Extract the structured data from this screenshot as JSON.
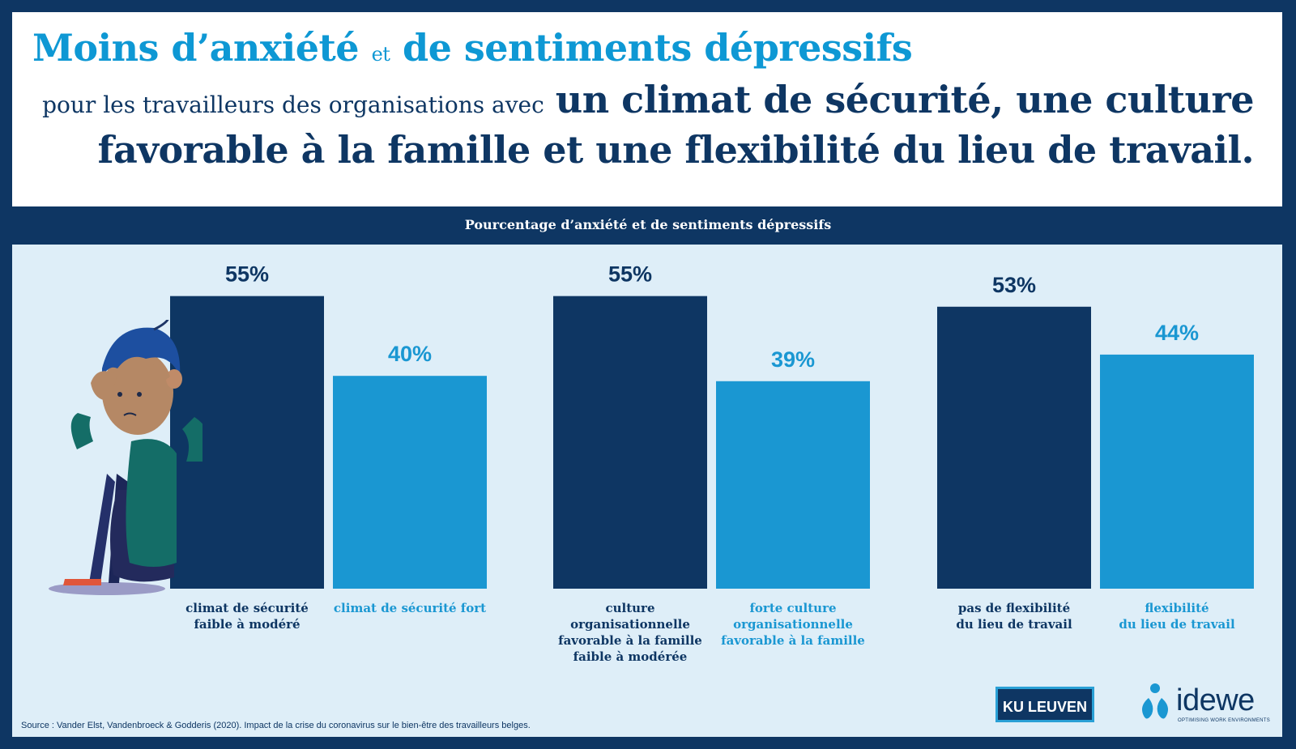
{
  "header": {
    "line1_part1": "Moins d’anxiété",
    "line1_connector": "et",
    "line1_part2": "de sentiments dépressifs",
    "line2_intro": "pour les travailleurs des organisations avec",
    "line2_bold": "un climat de sécurité, une culture",
    "line3": "favorable à la famille et une flexibilité du lieu de travail."
  },
  "colors": {
    "dark": "#0e3663",
    "light": "#1a97d2",
    "panel": "#deeef8"
  },
  "chart_data": {
    "type": "bar",
    "title": "Pourcentage d’anxiété et de sentiments dépressifs",
    "ylim": [
      0,
      70
    ],
    "groups": [
      {
        "bars": [
          {
            "label": "climat de sécurité faible à modéré",
            "label_lines": [
              "climat de sécurité",
              "faible à modéré"
            ],
            "value": 55,
            "value_label": "55%",
            "tone": "dark"
          },
          {
            "label": "climat de sécurité fort",
            "label_lines": [
              "climat de sécurité fort"
            ],
            "value": 40,
            "value_label": "40%",
            "tone": "light"
          }
        ]
      },
      {
        "bars": [
          {
            "label": "culture organisationnelle favorable à la famille faible à modérée",
            "label_lines": [
              "culture",
              "organisationnelle",
              "favorable à la famille",
              "faible à modérée"
            ],
            "value": 55,
            "value_label": "55%",
            "tone": "dark"
          },
          {
            "label": "forte culture organisationnelle favorable à la famille",
            "label_lines": [
              "forte culture",
              "organisationnelle",
              "favorable à la famille"
            ],
            "value": 39,
            "value_label": "39%",
            "tone": "light"
          }
        ]
      },
      {
        "bars": [
          {
            "label": "pas de flexibilité du lieu de travail",
            "label_lines": [
              "pas de flexibilité",
              "du lieu de travail"
            ],
            "value": 53,
            "value_label": "53%",
            "tone": "dark"
          },
          {
            "label": "flexibilité du lieu de travail",
            "label_lines": [
              "flexibilité",
              "du lieu de travail"
            ],
            "value": 44,
            "value_label": "44%",
            "tone": "light"
          }
        ]
      }
    ]
  },
  "footer": {
    "source": "Source : Vander Elst, Vandenbroeck & Godderis (2020). Impact de la crise du coronavirus sur le bien-être des travailleurs belges.",
    "logo_kul": "KU LEUVEN",
    "logo_idewe": "idewe",
    "logo_idewe_tagline": "OPTIMISING WORK ENVIRONMENTS"
  },
  "illustration": "stressed-person-icon"
}
